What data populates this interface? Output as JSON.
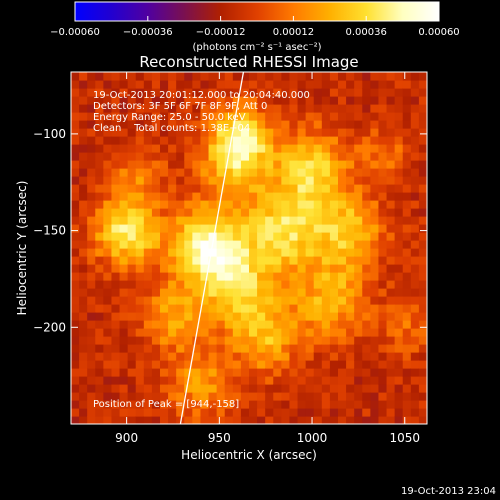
{
  "colorbar": {
    "tick_labels": [
      "−0.00060",
      "−0.00036",
      "−0.00012",
      "0.00012",
      "0.00036",
      "0.00060"
    ],
    "tick_values": [
      -0.0006,
      -0.00036,
      -0.00012,
      0.00012,
      0.00036,
      0.0006
    ],
    "range": [
      -0.0006,
      0.0006
    ],
    "unit_text": "(photons cm⁻² s⁻¹ asec⁻²)",
    "colors": [
      "#0000ff",
      "#2200d0",
      "#5000a0",
      "#7a1050",
      "#b02000",
      "#e04000",
      "#ff7a00",
      "#ffb000",
      "#ffe030",
      "#ffffc0",
      "#ffffff"
    ]
  },
  "chart_data": {
    "type": "heatmap",
    "title": "Reconstructed RHESSI Image",
    "xlabel": "Heliocentric X (arcsec)",
    "ylabel": "Heliocentric Y (arcsec)",
    "xlim": [
      870,
      1062
    ],
    "ylim": [
      -250,
      -68
    ],
    "xticks": [
      900,
      950,
      1000,
      1050
    ],
    "yticks": [
      -100,
      -150,
      -200
    ],
    "info_lines": [
      "19-Oct-2013 20:01:12.000 to 20:04:40.000",
      "Detectors: 3F 5F 6F 7F 8F 9F, Att 0",
      "Energy Range: 25.0 - 50.0 keV",
      "Clean    Total counts: 1.38E+04"
    ],
    "peak_text": "Position of Peak = [944,-158]",
    "peak": [
      944,
      -158
    ],
    "limb_line": [
      [
        929,
        -250
      ],
      [
        963,
        -68
      ]
    ],
    "sources": [
      {
        "x": 944,
        "y": -158,
        "amp": 1.0,
        "sigma": 14
      },
      {
        "x": 900,
        "y": -150,
        "amp": 0.85,
        "sigma": 12
      },
      {
        "x": 962,
        "y": -100,
        "amp": 0.7,
        "sigma": 11
      },
      {
        "x": 958,
        "y": -115,
        "amp": 0.6,
        "sigma": 13
      },
      {
        "x": 1000,
        "y": -118,
        "amp": 0.7,
        "sigma": 14
      },
      {
        "x": 985,
        "y": -150,
        "amp": 0.75,
        "sigma": 15
      },
      {
        "x": 1020,
        "y": -150,
        "amp": 0.6,
        "sigma": 13
      },
      {
        "x": 1010,
        "y": -185,
        "amp": 0.55,
        "sigma": 14
      },
      {
        "x": 960,
        "y": -180,
        "amp": 0.6,
        "sigma": 14
      },
      {
        "x": 975,
        "y": -205,
        "amp": 0.55,
        "sigma": 13
      },
      {
        "x": 940,
        "y": -230,
        "amp": 0.45,
        "sigma": 12
      },
      {
        "x": 925,
        "y": -195,
        "amp": 0.5,
        "sigma": 12
      },
      {
        "x": 905,
        "y": -120,
        "amp": 0.35,
        "sigma": 10
      },
      {
        "x": 1040,
        "y": -110,
        "amp": 0.25,
        "sigma": 10
      },
      {
        "x": 1050,
        "y": -200,
        "amp": 0.25,
        "sigma": 10
      }
    ]
  },
  "timestamp": "19-Oct-2013 23:04"
}
